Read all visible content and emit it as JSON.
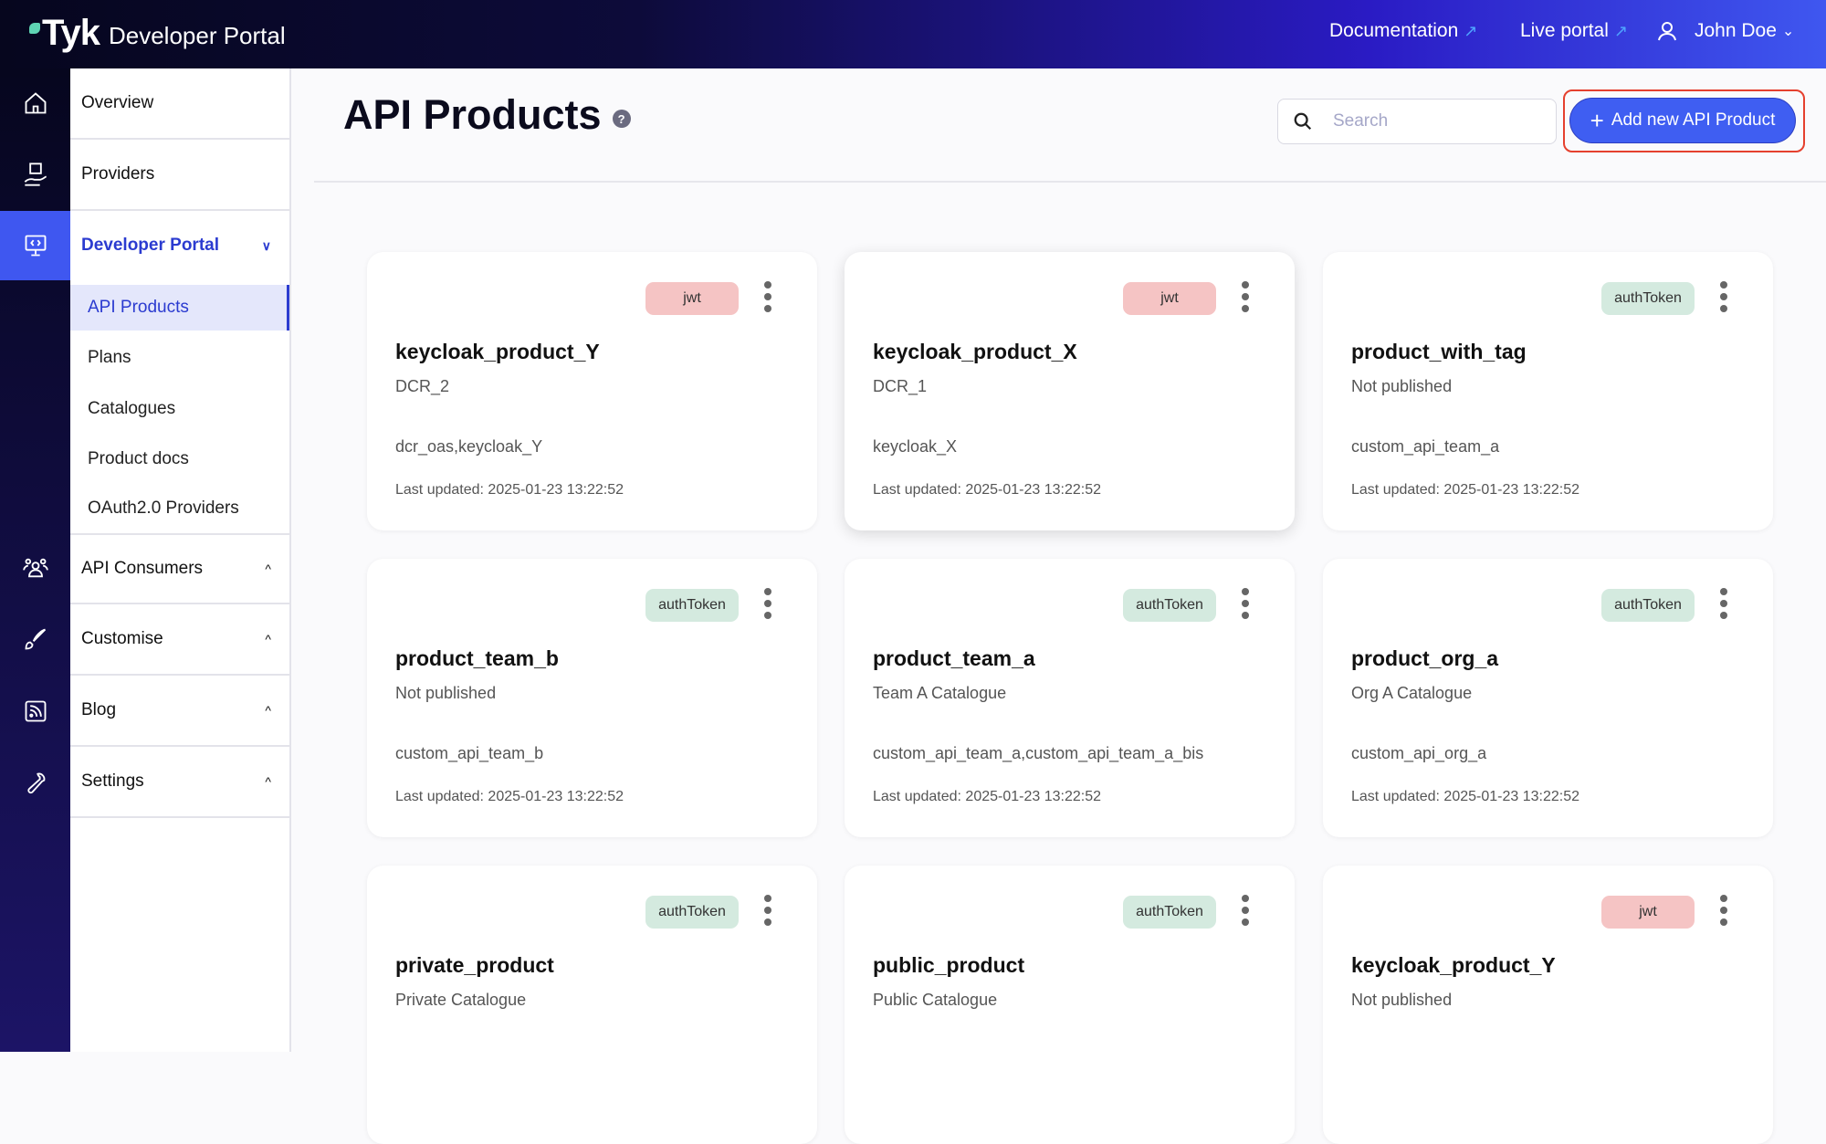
{
  "header": {
    "logo_text": "Tyk",
    "title": "Developer Portal",
    "documentation": "Documentation",
    "live_portal": "Live portal",
    "user": "John Doe"
  },
  "sidebar": {
    "items": [
      {
        "label": "Overview"
      },
      {
        "label": "Providers"
      },
      {
        "label": "Developer Portal"
      },
      {
        "label": "API Consumers"
      },
      {
        "label": "Customise"
      },
      {
        "label": "Blog"
      },
      {
        "label": "Settings"
      }
    ],
    "sub_items": [
      {
        "label": "API Products"
      },
      {
        "label": "Plans"
      },
      {
        "label": "Catalogues"
      },
      {
        "label": "Product docs"
      },
      {
        "label": "OAuth2.0 Providers"
      }
    ]
  },
  "main": {
    "title": "API Products",
    "search_placeholder": "Search",
    "add_button": "Add new API Product",
    "colors": {
      "jwt": "#f5c4c4",
      "authToken": "#d4eadf",
      "accent": "#3f5ef2"
    },
    "cards": [
      {
        "badge": "jwt",
        "name": "keycloak_product_Y",
        "catalogue": "DCR_2",
        "apis": "dcr_oas,keycloak_Y",
        "updated": "Last updated: 2025-01-23 13:22:52"
      },
      {
        "badge": "jwt",
        "name": "keycloak_product_X",
        "catalogue": "DCR_1",
        "apis": "keycloak_X",
        "updated": "Last updated: 2025-01-23 13:22:52"
      },
      {
        "badge": "authToken",
        "name": "product_with_tag",
        "catalogue": "Not published",
        "apis": "custom_api_team_a",
        "updated": "Last updated: 2025-01-23 13:22:52"
      },
      {
        "badge": "authToken",
        "name": "product_team_b",
        "catalogue": "Not published",
        "apis": "custom_api_team_b",
        "updated": "Last updated: 2025-01-23 13:22:52"
      },
      {
        "badge": "authToken",
        "name": "product_team_a",
        "catalogue": "Team A Catalogue",
        "apis": "custom_api_team_a,custom_api_team_a_bis",
        "updated": "Last updated: 2025-01-23 13:22:52"
      },
      {
        "badge": "authToken",
        "name": "product_org_a",
        "catalogue": "Org A Catalogue",
        "apis": "custom_api_org_a",
        "updated": "Last updated: 2025-01-23 13:22:52"
      },
      {
        "badge": "authToken",
        "name": "private_product",
        "catalogue": "Private Catalogue"
      },
      {
        "badge": "authToken",
        "name": "public_product",
        "catalogue": "Public Catalogue"
      },
      {
        "badge": "jwt",
        "name": "keycloak_product_Y",
        "catalogue": "Not published"
      }
    ]
  }
}
